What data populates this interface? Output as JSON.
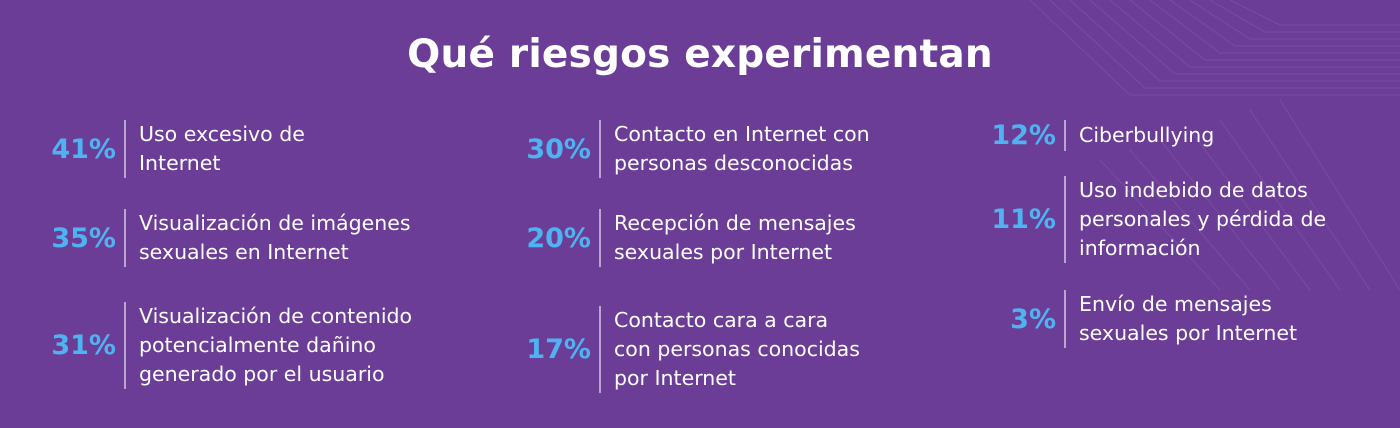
{
  "title": "Qué riesgos experimentan",
  "columns": [
    {
      "items": [
        {
          "percent": "41%",
          "label": "Uso excesivo de\nInternet"
        },
        {
          "percent": "35%",
          "label": "Visualización de imágenes\nsexuales en Internet"
        },
        {
          "percent": "31%",
          "label": "Visualización de contenido\npotencialmente dañino\ngenerado por el usuario"
        }
      ]
    },
    {
      "items": [
        {
          "percent": "30%",
          "label": "Contacto en Internet con\npersonas desconocidas"
        },
        {
          "percent": "20%",
          "label": "Recepción de mensajes\nsexuales por Internet"
        },
        {
          "percent": "17%",
          "label": "Contacto cara a cara\ncon personas conocidas\npor Internet"
        }
      ]
    },
    {
      "items": [
        {
          "percent": "12%",
          "label": "Ciberbullying"
        },
        {
          "percent": "11%",
          "label": "Uso indebido de datos\npersonales y pérdida de\ninformación"
        },
        {
          "percent": "3%",
          "label": "Envío de mensajes\nsexuales por Internet"
        }
      ]
    }
  ],
  "colors": {
    "background": "#6b3d96",
    "percent": "#4fb3f2",
    "text": "#ffffff",
    "divider": "#b9a6cf"
  }
}
